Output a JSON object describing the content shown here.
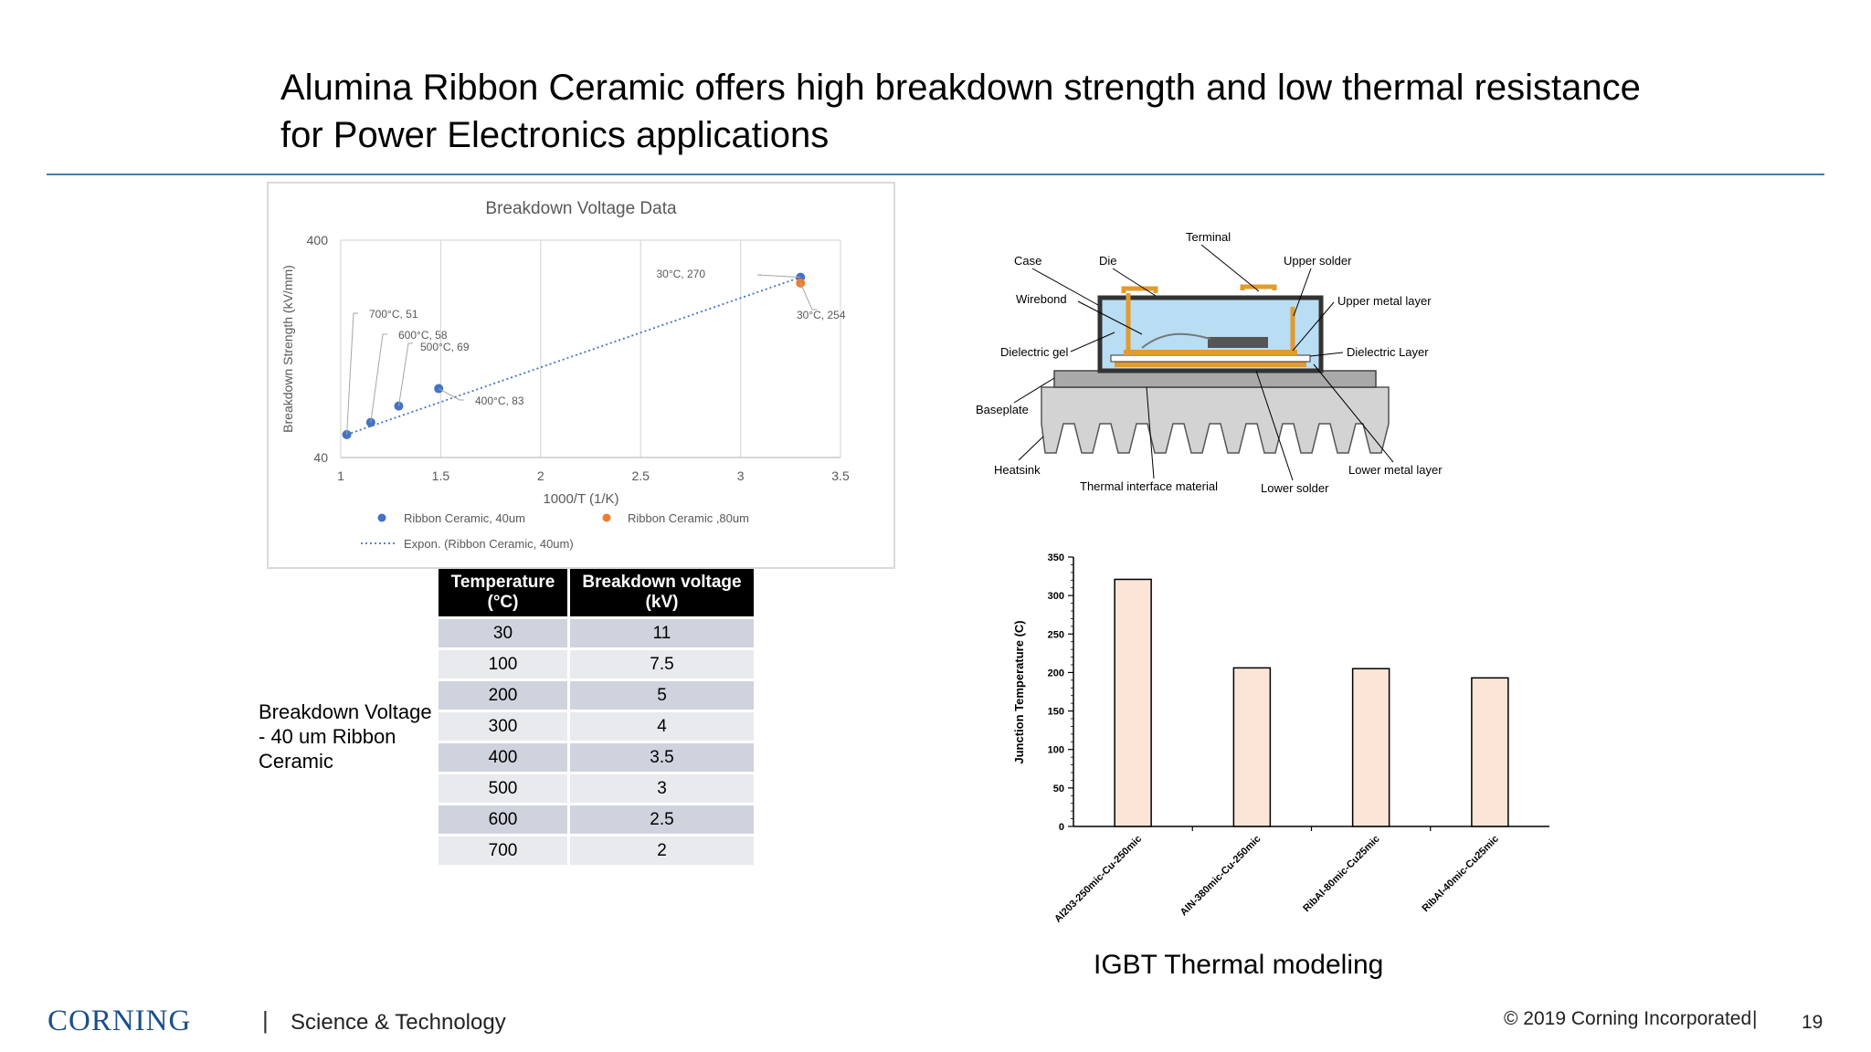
{
  "slide": {
    "title": "Alumina Ribbon Ceramic offers high breakdown strength and low thermal resistance for Power Electronics applications",
    "side_label": "Breakdown Voltage - 40 um Ribbon Ceramic",
    "footer": {
      "logo": "CORNING",
      "separator": "|",
      "section": "Science & Technology",
      "copyright": "© 2019 Corning Incorporated",
      "page": "19"
    }
  },
  "ibgt_diagram": {
    "labels": {
      "terminal": "Terminal",
      "case": "Case",
      "die": "Die",
      "upper_solder": "Upper solder",
      "wirebond": "Wirebond",
      "upper_metal": "Upper metal layer",
      "dielectric_gel": "Dielectric gel",
      "dielectric_layer": "Dielectric Layer",
      "baseplate": "Baseplate",
      "heatsink": "Heatsink",
      "thermal_interface": "Thermal interface material",
      "lower_solder": "Lower solder",
      "lower_metal": "Lower metal layer"
    }
  },
  "table": {
    "headers": [
      "Temperature (°C)",
      "Breakdown voltage (kV)"
    ],
    "rows": [
      [
        "30",
        "11"
      ],
      [
        "100",
        "7.5"
      ],
      [
        "200",
        "5"
      ],
      [
        "300",
        "4"
      ],
      [
        "400",
        "3.5"
      ],
      [
        "500",
        "3"
      ],
      [
        "600",
        "2.5"
      ],
      [
        "700",
        "2"
      ]
    ]
  },
  "chart_data": [
    {
      "type": "scatter",
      "title": "Breakdown Voltage Data",
      "xlabel": "1000/T (1/K)",
      "ylabel": "Breakdown Strength (kV/mm)",
      "xlim": [
        1,
        3.5
      ],
      "ylim": [
        40,
        400
      ],
      "yscale": "log",
      "xticks": [
        "1",
        "1.5",
        "2",
        "2.5",
        "3",
        "3.5"
      ],
      "yticks": [
        "40",
        "400"
      ],
      "grid": "vertical",
      "series": [
        {
          "name": "Ribbon Ceramic, 40um",
          "color": "#4472c4",
          "points": [
            {
              "x": 1.03,
              "y": 51
            },
            {
              "x": 1.15,
              "y": 58
            },
            {
              "x": 1.29,
              "y": 69
            },
            {
              "x": 1.49,
              "y": 83
            },
            {
              "x": 3.3,
              "y": 270
            }
          ]
        },
        {
          "name": "Ribbon Ceramic ,80um",
          "color": "#ed7d31",
          "points": [
            {
              "x": 3.3,
              "y": 254
            }
          ]
        }
      ],
      "trendline": {
        "name": "Expon. (Ribbon Ceramic, 40um)",
        "from": {
          "x": 1.03,
          "y": 51
        },
        "to": {
          "x": 3.3,
          "y": 270
        }
      },
      "annotations": [
        "700°C, 51",
        "600°C, 58",
        "500°C, 69",
        "400°C, 83",
        "30°C, 270",
        "30°C, 254"
      ],
      "legend": "bottom"
    },
    {
      "type": "bar",
      "title": "",
      "caption": "IGBT Thermal modeling",
      "ylabel": "Junction Temperature (C)",
      "xlabel": "",
      "ylim": [
        0,
        350
      ],
      "yticks": [
        "0",
        "50",
        "100",
        "150",
        "200",
        "250",
        "300",
        "350"
      ],
      "categories": [
        "Al203-250mic-Cu-250mic",
        "AlN-380mic-Cu-250mic",
        "RibAl-80mic-Cu25mic",
        "RibAl-40mic-Cu25mic"
      ],
      "values": [
        321,
        206,
        205,
        193
      ],
      "bar_color": "#fbe5d6"
    }
  ]
}
